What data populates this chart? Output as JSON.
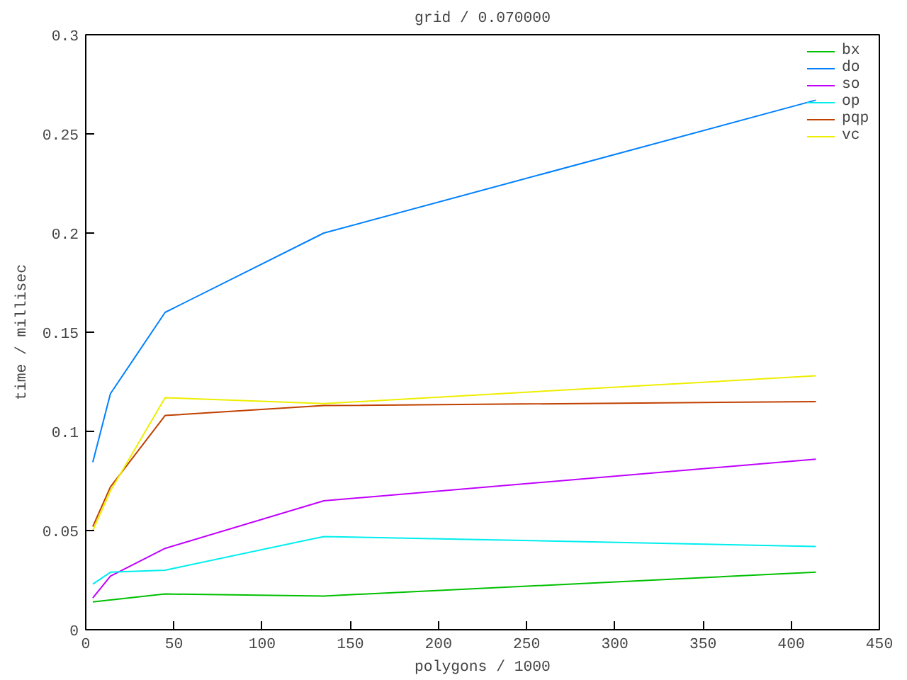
{
  "chart_data": {
    "type": "line",
    "title": "grid / 0.070000",
    "xlabel": "polygons / 1000",
    "ylabel": "time / millisec",
    "x": [
      4,
      14,
      45,
      135,
      414
    ],
    "series": [
      {
        "name": "bx",
        "color": "#00c000",
        "values": [
          0.014,
          0.015,
          0.018,
          0.017,
          0.029
        ]
      },
      {
        "name": "do",
        "color": "#0080ff",
        "values": [
          0.0845,
          0.119,
          0.16,
          0.2,
          0.267
        ]
      },
      {
        "name": "so",
        "color": "#c000ff",
        "values": [
          0.016,
          0.027,
          0.041,
          0.065,
          0.086
        ]
      },
      {
        "name": "op",
        "color": "#00eeee",
        "values": [
          0.023,
          0.029,
          0.03,
          0.047,
          0.042
        ]
      },
      {
        "name": "pqp",
        "color": "#c04000",
        "values": [
          0.052,
          0.072,
          0.108,
          0.113,
          0.115
        ]
      },
      {
        "name": "vc",
        "color": "#eeee00",
        "values": [
          0.05,
          0.07,
          0.117,
          0.114,
          0.128
        ]
      }
    ],
    "xlim": [
      0,
      450
    ],
    "xticks": [
      0,
      50,
      100,
      150,
      200,
      250,
      300,
      350,
      400,
      450
    ],
    "ylim": [
      0,
      0.3
    ],
    "yticks": [
      0,
      0.05,
      0.1,
      0.15,
      0.2,
      0.25,
      0.3
    ],
    "grid": false,
    "legend": "top right",
    "marker": "none",
    "line_style": "solid"
  }
}
